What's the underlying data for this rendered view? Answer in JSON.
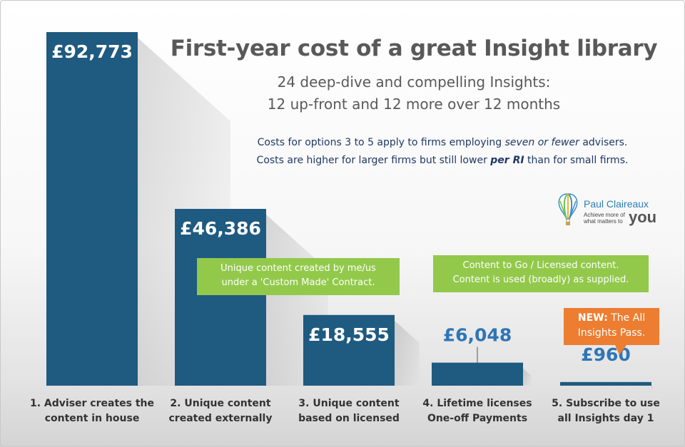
{
  "title": "First-year cost of a great Insight library",
  "subtitle_line1": "24 deep-dive and compelling Insights:",
  "subtitle_line2": "12 up-front and 12 more over 12 months",
  "note": {
    "line1_pre": "Costs for options 3 to 5 apply to firms employing ",
    "line1_em": "seven or fewer",
    "line1_post": " advisers.",
    "line2_pre": "Costs are higher for larger firms but still lower ",
    "line2_em": "per RI",
    "line2_post": " than for small firms."
  },
  "logo": {
    "name": "Paul Claireaux",
    "tagline1": "Achieve more of",
    "tagline2": "what matters to",
    "tagline_you": "you",
    "icon": "balloon-icon"
  },
  "callouts": {
    "custom": [
      "Unique content created by me/us",
      "under a 'Custom Made' Contract."
    ],
    "licensed": [
      "Content to Go / Licensed content.",
      "Content is used (broadly) as supplied."
    ],
    "promo_bold": "NEW:",
    "promo_rest": " The All",
    "promo_line2": "Insights Pass."
  },
  "colors": {
    "bar": "#1f5a80",
    "label_inside": "#ffffff",
    "label_outside": "#2e75b6",
    "callout_green": "#92c94b",
    "callout_orange": "#ed7d31"
  },
  "chart_data": {
    "type": "bar",
    "categories": [
      "1. Adviser creates the content in house",
      "2. Unique content created externally",
      "3. Unique content based on licensed",
      "4. Lifetime licenses One-off Payments",
      "5. Subscribe to use all Insights day 1"
    ],
    "category_lines": [
      [
        "1. Adviser creates the",
        "content in house"
      ],
      [
        "2. Unique content",
        "created externally"
      ],
      [
        "3. Unique content",
        "based on licensed"
      ],
      [
        "4. Lifetime licenses",
        "One-off Payments"
      ],
      [
        "5. Subscribe to use",
        "all Insights day 1"
      ]
    ],
    "values": [
      92773,
      46386,
      18555,
      6048,
      960
    ],
    "value_labels": [
      "£92,773",
      "£46,386",
      "£18,555",
      "£6,048",
      "£960"
    ],
    "ylim": [
      0,
      92773
    ],
    "grid": false,
    "legend": "none",
    "xlabel": "",
    "ylabel": ""
  }
}
